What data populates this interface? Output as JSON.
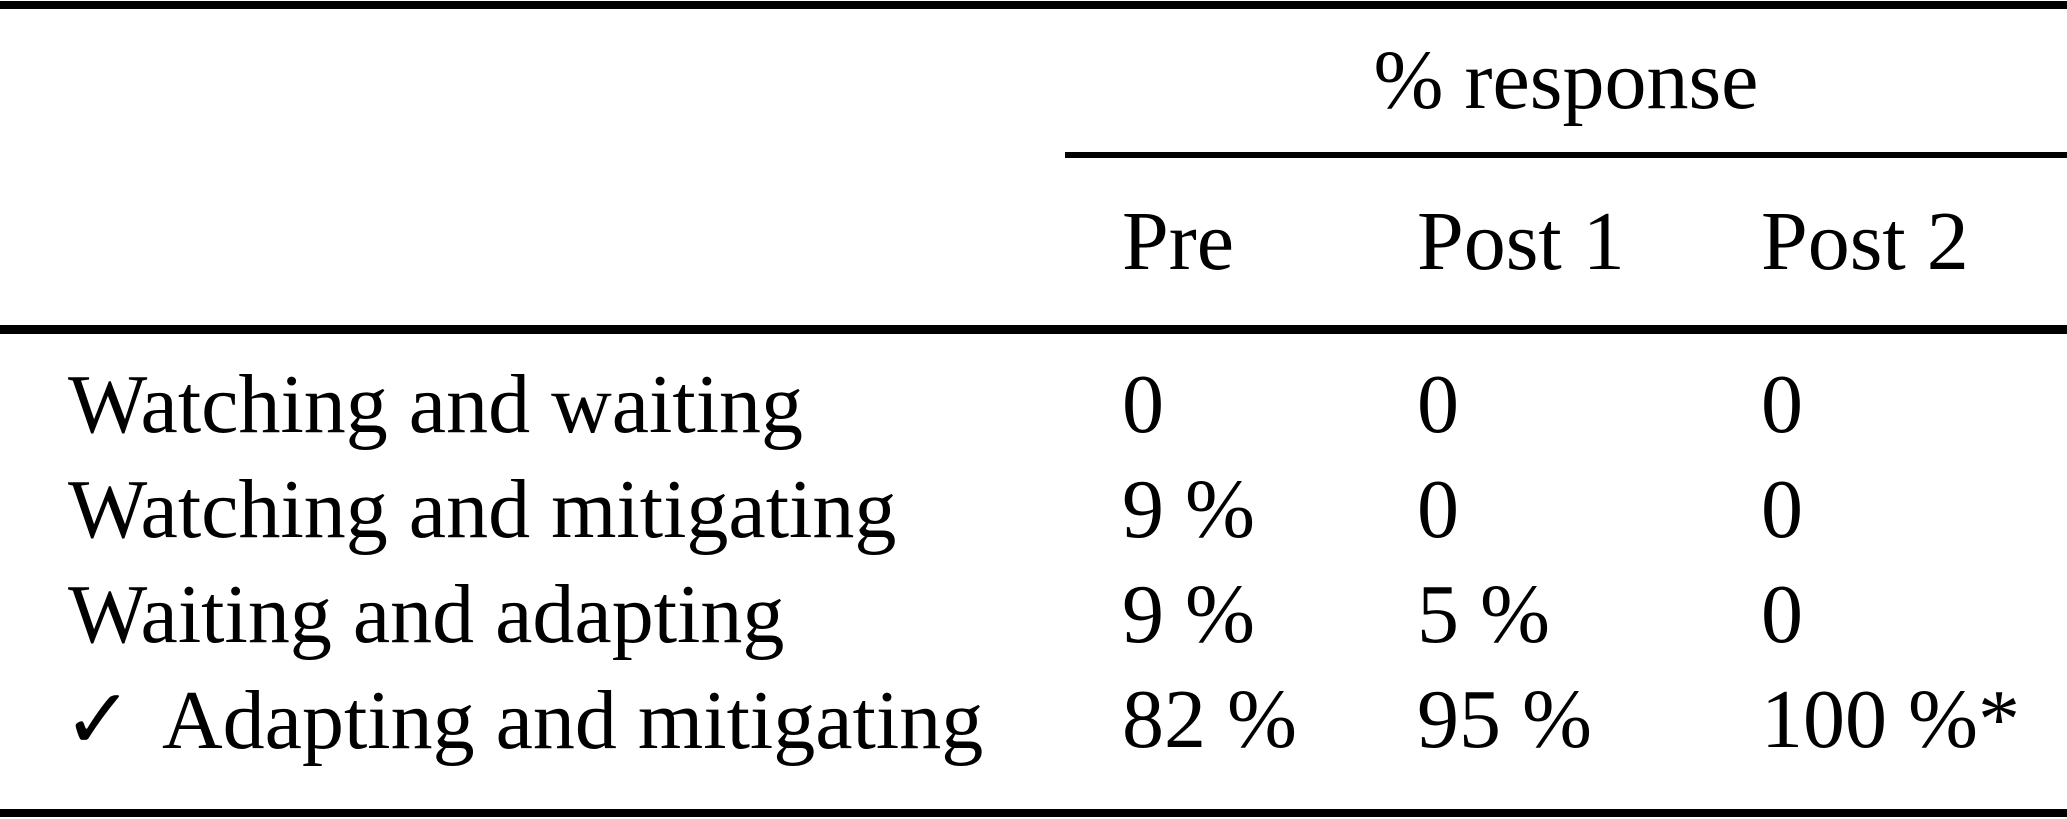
{
  "table": {
    "span_header": "% response",
    "columns": [
      "Pre",
      "Post 1",
      "Post 2"
    ],
    "check_mark": "✓",
    "rows": [
      {
        "label": "Watching and waiting",
        "checked": false,
        "values": [
          "0",
          "0",
          "0"
        ]
      },
      {
        "label": "Watching and mitigating",
        "checked": false,
        "values": [
          "9 %",
          "0",
          "0"
        ]
      },
      {
        "label": "Waiting and adapting",
        "checked": false,
        "values": [
          "9 %",
          "5 %",
          "0"
        ]
      },
      {
        "label": "Adapting and mitigating",
        "checked": true,
        "values": [
          "82 %",
          "95 %",
          "100 %*"
        ]
      }
    ]
  }
}
